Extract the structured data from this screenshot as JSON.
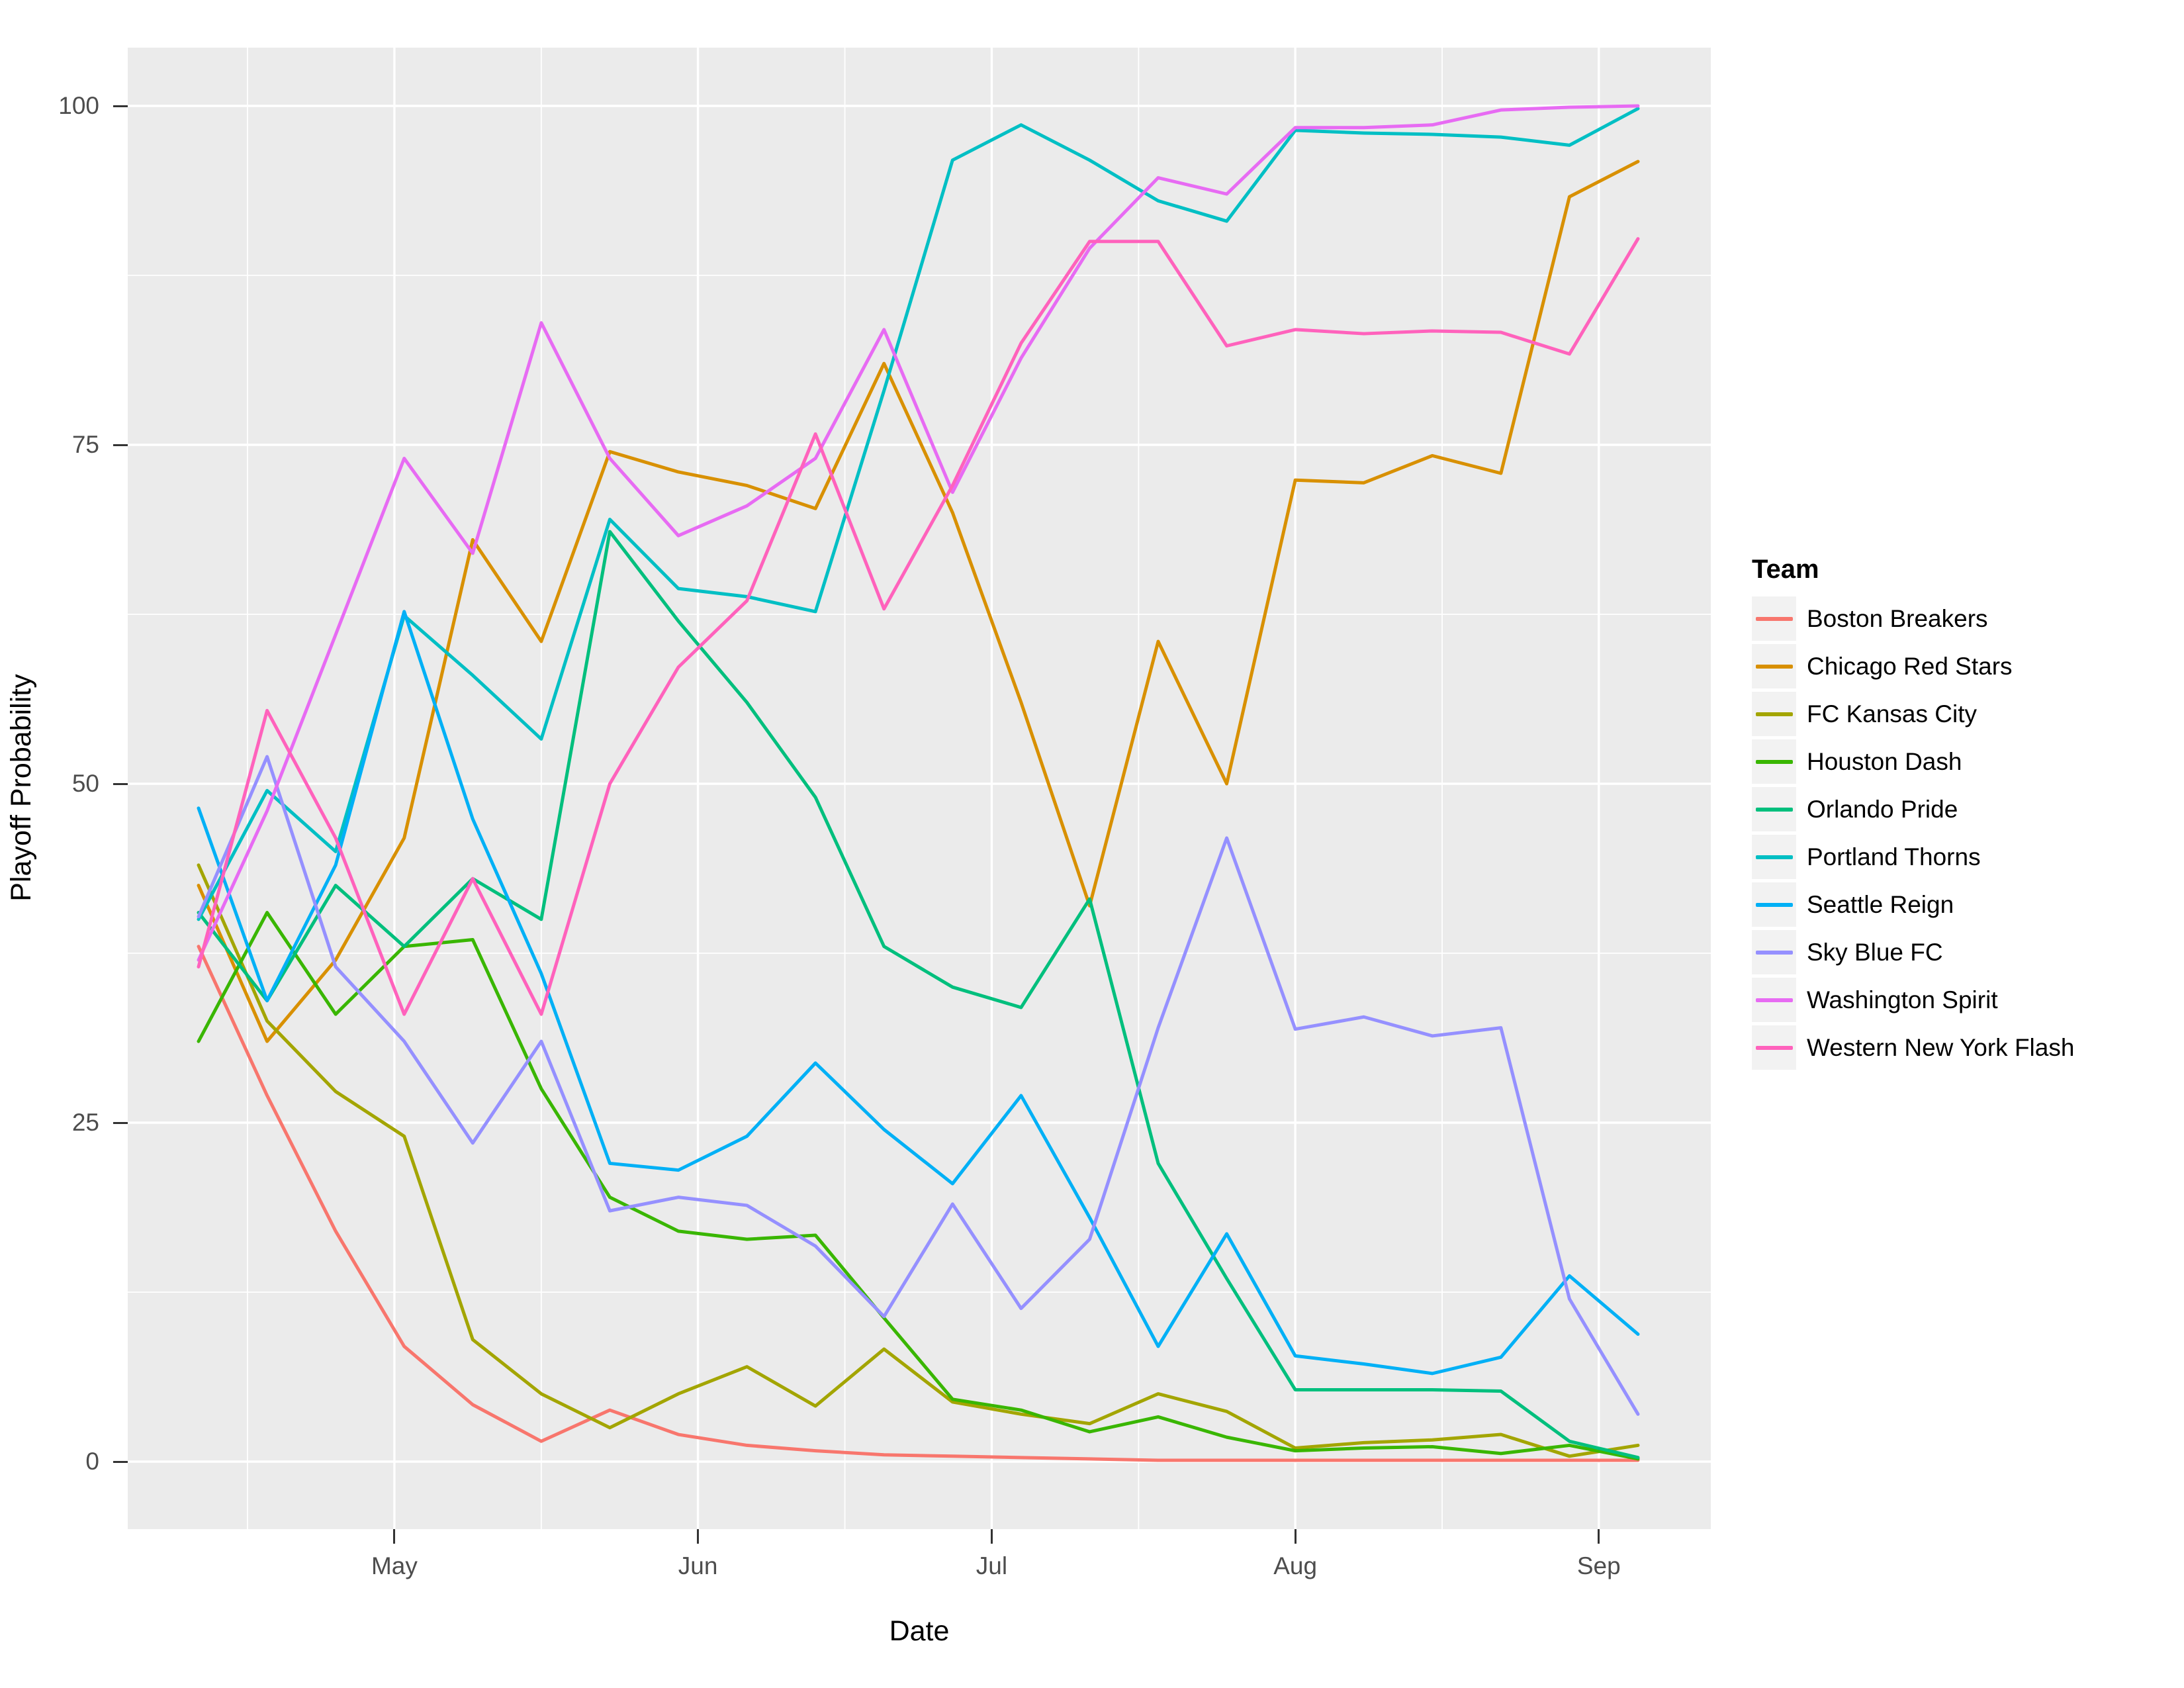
{
  "axes": {
    "x": {
      "label": "Date",
      "tick_labels": [
        "May",
        "Jun",
        "Jul",
        "Aug",
        "Sep"
      ]
    },
    "y": {
      "label": "Playoff Probability",
      "tick_labels": [
        "0",
        "25",
        "50",
        "75",
        "100"
      ]
    }
  },
  "legend": {
    "title": "Team"
  },
  "colors": {
    "panel_background": "#EBEBEB",
    "gridline": "#FFFFFF",
    "tick_text": "#4D4D4D",
    "axis_title": "#000000",
    "legend_key_background": "#F2F2F2"
  },
  "chart_data": {
    "type": "line",
    "title": "",
    "xlabel": "Date",
    "ylabel": "Playoff Probability",
    "ylim": [
      0,
      100
    ],
    "grid": "on",
    "legend_position": "right",
    "x": [
      "Apr 11",
      "Apr 18",
      "Apr 25",
      "May 2",
      "May 9",
      "May 16",
      "May 23",
      "May 30",
      "Jun 6",
      "Jun 13",
      "Jun 20",
      "Jun 27",
      "Jul 4",
      "Jul 11",
      "Jul 18",
      "Jul 25",
      "Aug 1",
      "Aug 8",
      "Aug 15",
      "Aug 22",
      "Aug 29",
      "Sep 5"
    ],
    "x_axis_month_ticks": [
      "May",
      "Jun",
      "Jul",
      "Aug",
      "Sep"
    ],
    "y_axis_ticks": [
      0,
      25,
      50,
      75,
      100
    ],
    "series": [
      {
        "name": "Boston Breakers",
        "color": "#F8766D",
        "values": [
          38,
          27,
          17,
          8.5,
          4.2,
          1.5,
          3.8,
          2,
          1.2,
          0.8,
          0.5,
          0.4,
          0.3,
          0.2,
          0.1,
          0.1,
          0.1,
          0.1,
          0.1,
          0.1,
          0.1,
          0.1
        ]
      },
      {
        "name": "Chicago Red Stars",
        "color": "#D89000",
        "values": [
          42.5,
          31,
          37,
          46,
          68,
          60.5,
          74.5,
          73,
          72,
          70.3,
          81,
          70,
          56,
          41,
          60.5,
          50,
          72.4,
          72.2,
          74.2,
          72.9,
          93.3,
          95.9
        ]
      },
      {
        "name": "FC Kansas City",
        "color": "#A3A500",
        "values": [
          44,
          32.5,
          27.3,
          24,
          9,
          5,
          2.5,
          5,
          7,
          4.1,
          8.3,
          4.4,
          3.5,
          2.8,
          5,
          3.7,
          1,
          1.4,
          1.6,
          2,
          0.4,
          1.2
        ]
      },
      {
        "name": "Houston Dash",
        "color": "#39B600",
        "values": [
          31,
          40.5,
          33,
          38,
          38.5,
          27.5,
          19.5,
          17,
          16.4,
          16.7,
          10.6,
          4.6,
          3.8,
          2.2,
          3.3,
          1.8,
          0.8,
          1,
          1.1,
          0.6,
          1.2,
          0.2
        ]
      },
      {
        "name": "Orlando Pride",
        "color": "#00BF7D",
        "values": [
          40.5,
          34,
          42.5,
          38,
          43,
          40,
          68.6,
          62,
          56,
          49,
          38,
          35,
          33.5,
          41.5,
          22,
          13.5,
          5.3,
          5.3,
          5.3,
          5.2,
          1.5,
          0.3
        ]
      },
      {
        "name": "Portland Thorns",
        "color": "#00BFC4",
        "values": [
          40,
          49.5,
          45,
          62.4,
          58,
          53.3,
          69.5,
          64.4,
          63.8,
          62.7,
          79,
          96,
          98.6,
          96,
          93,
          91.5,
          98.2,
          98,
          97.9,
          97.7,
          97.1,
          99.8
        ]
      },
      {
        "name": "Seattle Reign",
        "color": "#00B0F6",
        "values": [
          48.2,
          34,
          44,
          62.7,
          47.4,
          36,
          22,
          21.5,
          24,
          29.4,
          24.5,
          20.5,
          27,
          18,
          8.5,
          16.8,
          7.8,
          7.2,
          6.5,
          7.7,
          13.7,
          9.4
        ]
      },
      {
        "name": "Sky Blue FC",
        "color": "#9590FF",
        "values": [
          40.2,
          52,
          36.5,
          31,
          23.5,
          31,
          18.5,
          19.5,
          18.9,
          15.9,
          10.7,
          19,
          11.3,
          16.4,
          32,
          46,
          31.9,
          32.8,
          31.4,
          32,
          12,
          3.5
        ]
      },
      {
        "name": "Washington Spirit",
        "color": "#E76BF3",
        "values": [
          37,
          48,
          61,
          74,
          67,
          84,
          74,
          68.3,
          70.5,
          74,
          83.5,
          71.5,
          81.4,
          89.5,
          94.7,
          93.5,
          98.4,
          98.4,
          98.6,
          99.7,
          99.9,
          100
        ]
      },
      {
        "name": "Western New York Flash",
        "color": "#FF62BC",
        "values": [
          36.5,
          55.4,
          46,
          33,
          43,
          33,
          50,
          58.6,
          63.5,
          75.8,
          62.9,
          72,
          82.5,
          90,
          90,
          82.3,
          83.5,
          83.2,
          83.4,
          83.3,
          81.7,
          90.2
        ]
      }
    ]
  }
}
